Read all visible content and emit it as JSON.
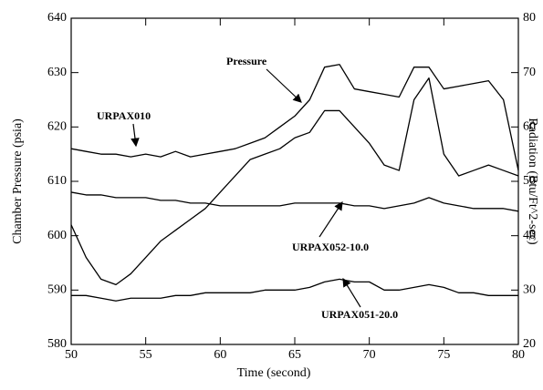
{
  "chart_data": {
    "type": "line",
    "xlabel": "Time (second)",
    "ylabel": "Chamber Pressure (psia)",
    "y2label": "Radiation (Btu/Ft^2-sec)",
    "x": [
      50,
      51,
      52,
      53,
      54,
      55,
      56,
      57,
      58,
      59,
      60,
      61,
      62,
      63,
      64,
      65,
      66,
      67,
      68,
      69,
      70,
      71,
      72,
      73,
      74,
      75,
      76,
      77,
      78,
      79,
      80
    ],
    "series": [
      {
        "name": "Pressure",
        "color": "#000000",
        "values": [
          602,
          596,
          592,
          591,
          593,
          596,
          599,
          601,
          603,
          605,
          608,
          611,
          614,
          615,
          616,
          618,
          619,
          623,
          623,
          620,
          617,
          613,
          612,
          625,
          629,
          615,
          611,
          612,
          613,
          612,
          611
        ]
      },
      {
        "name": "URPAX010",
        "color": "#000000",
        "axis": "y2",
        "values": [
          56,
          55.5,
          55,
          55,
          54.5,
          55,
          54.5,
          55.5,
          54.5,
          55,
          55.5,
          56,
          57,
          58,
          60,
          62,
          65,
          71,
          71.5,
          67,
          66.5,
          66,
          65.5,
          71,
          71,
          67,
          67.5,
          68,
          68.5,
          65,
          52
        ]
      },
      {
        "name": "URPAX052-10.0",
        "color": "#000000",
        "axis": "y2",
        "values": [
          48,
          47.5,
          47.5,
          47,
          47,
          47,
          46.5,
          46.5,
          46,
          46,
          45.5,
          45.5,
          45.5,
          45.5,
          45.5,
          46,
          46,
          46,
          46,
          45.5,
          45.5,
          45,
          45.5,
          46,
          47,
          46,
          45.5,
          45,
          45,
          45,
          44.5
        ]
      },
      {
        "name": "URPAX051-20.0",
        "color": "#000000",
        "axis": "y2",
        "values": [
          29,
          29,
          28.5,
          28,
          28.5,
          28.5,
          28.5,
          29,
          29,
          29.5,
          29.5,
          29.5,
          29.5,
          30,
          30,
          30,
          30.5,
          31.5,
          32,
          31.5,
          31.5,
          30,
          30,
          30.5,
          31,
          30.5,
          29.5,
          29.5,
          29,
          29,
          29
        ]
      }
    ],
    "xlim": [
      50,
      80
    ],
    "xticks": [
      50,
      55,
      60,
      65,
      70,
      75,
      80
    ],
    "ylim": [
      580,
      640
    ],
    "yticks": [
      580,
      590,
      600,
      610,
      620,
      630,
      640
    ],
    "y2lim": [
      20,
      80
    ],
    "y2ticks": [
      20,
      30,
      40,
      50,
      60,
      70,
      80
    ]
  }
}
